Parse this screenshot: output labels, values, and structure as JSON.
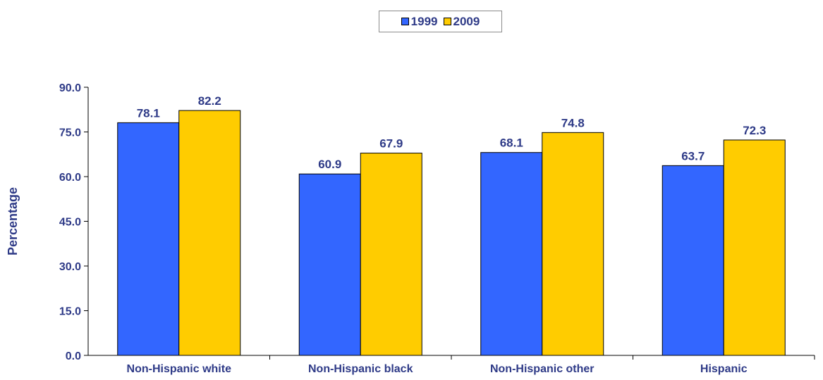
{
  "chart_data": {
    "type": "bar",
    "categories": [
      "Non-Hispanic white",
      "Non-Hispanic black",
      "Non-Hispanic other",
      "Hispanic"
    ],
    "series": [
      {
        "name": "1999",
        "values": [
          78.1,
          60.9,
          68.1,
          63.7
        ],
        "color": "#3366ff"
      },
      {
        "name": "2009",
        "values": [
          82.2,
          67.9,
          74.8,
          72.3
        ],
        "color": "#ffcc00"
      }
    ],
    "ylabel": "Percentage",
    "xlabel": "",
    "ylim": [
      0,
      90
    ],
    "yticks": [
      "0.0",
      "15.0",
      "30.0",
      "45.0",
      "60.0",
      "75.0",
      "90.0"
    ],
    "grid": false,
    "legend": "top-center",
    "text_color": "#2e3a87"
  }
}
